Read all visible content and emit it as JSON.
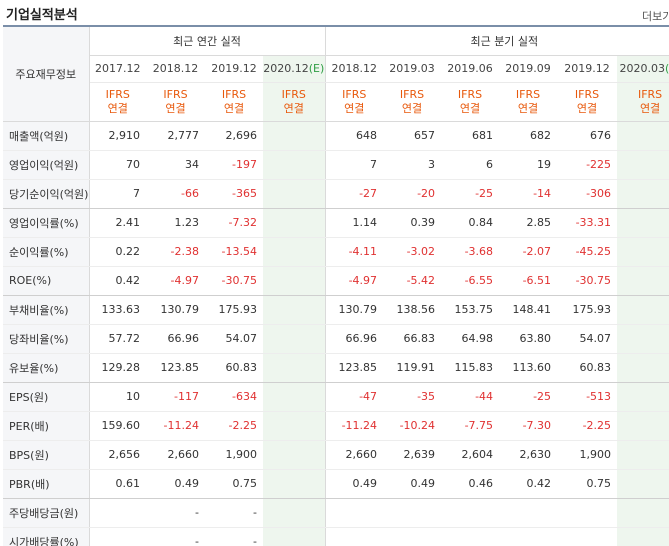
{
  "header": {
    "title": "기업실적분석",
    "more": "더보기"
  },
  "table": {
    "corner_label": "주요재무정보",
    "annual_label": "최근 연간 실적",
    "quarterly_label": "최근 분기 실적",
    "annual_periods": [
      "2017.12",
      "2018.12",
      "2019.12",
      "2020.12"
    ],
    "annual_estimate_mark": "(E)",
    "quarterly_periods": [
      "2018.12",
      "2019.03",
      "2019.06",
      "2019.09",
      "2019.12",
      "2020.03"
    ],
    "quarterly_estimate_mark": "(E)",
    "ifrs_line1": "IFRS",
    "ifrs_line2": "연결",
    "rows": [
      {
        "label": "매출액(억원)",
        "annual": [
          "2,910",
          "2,777",
          "2,696",
          ""
        ],
        "quarterly": [
          "648",
          "657",
          "681",
          "682",
          "676",
          ""
        ]
      },
      {
        "label": "영업이익(억원)",
        "annual": [
          "70",
          "34",
          "-197",
          ""
        ],
        "quarterly": [
          "7",
          "3",
          "6",
          "19",
          "-225",
          ""
        ]
      },
      {
        "label": "당기순이익(억원)",
        "annual": [
          "7",
          "-66",
          "-365",
          ""
        ],
        "quarterly": [
          "-27",
          "-20",
          "-25",
          "-14",
          "-306",
          ""
        ]
      },
      {
        "label": "영업이익률(%)",
        "annual": [
          "2.41",
          "1.23",
          "-7.32",
          ""
        ],
        "quarterly": [
          "1.14",
          "0.39",
          "0.84",
          "2.85",
          "-33.31",
          ""
        ]
      },
      {
        "label": "순이익률(%)",
        "annual": [
          "0.22",
          "-2.38",
          "-13.54",
          ""
        ],
        "quarterly": [
          "-4.11",
          "-3.02",
          "-3.68",
          "-2.07",
          "-45.25",
          ""
        ]
      },
      {
        "label": "ROE(%)",
        "annual": [
          "0.42",
          "-4.97",
          "-30.75",
          ""
        ],
        "quarterly": [
          "-4.97",
          "-5.42",
          "-6.55",
          "-6.51",
          "-30.75",
          ""
        ]
      },
      {
        "label": "부채비율(%)",
        "annual": [
          "133.63",
          "130.79",
          "175.93",
          ""
        ],
        "quarterly": [
          "130.79",
          "138.56",
          "153.75",
          "148.41",
          "175.93",
          ""
        ]
      },
      {
        "label": "당좌비율(%)",
        "annual": [
          "57.72",
          "66.96",
          "54.07",
          ""
        ],
        "quarterly": [
          "66.96",
          "66.83",
          "64.98",
          "63.80",
          "54.07",
          ""
        ]
      },
      {
        "label": "유보율(%)",
        "annual": [
          "129.28",
          "123.85",
          "60.83",
          ""
        ],
        "quarterly": [
          "123.85",
          "119.91",
          "115.83",
          "113.60",
          "60.83",
          ""
        ]
      },
      {
        "label": "EPS(원)",
        "annual": [
          "10",
          "-117",
          "-634",
          ""
        ],
        "quarterly": [
          "-47",
          "-35",
          "-44",
          "-25",
          "-513",
          ""
        ]
      },
      {
        "label": "PER(배)",
        "annual": [
          "159.60",
          "-11.24",
          "-2.25",
          ""
        ],
        "quarterly": [
          "-11.24",
          "-10.24",
          "-7.75",
          "-7.30",
          "-2.25",
          ""
        ]
      },
      {
        "label": "BPS(원)",
        "annual": [
          "2,656",
          "2,660",
          "1,900",
          ""
        ],
        "quarterly": [
          "2,660",
          "2,639",
          "2,604",
          "2,630",
          "1,900",
          ""
        ]
      },
      {
        "label": "PBR(배)",
        "annual": [
          "0.61",
          "0.49",
          "0.75",
          ""
        ],
        "quarterly": [
          "0.49",
          "0.49",
          "0.46",
          "0.42",
          "0.75",
          ""
        ]
      },
      {
        "label": "주당배당금(원)",
        "annual": [
          "",
          "-",
          "-",
          ""
        ],
        "quarterly": [
          "",
          "",
          "",
          "",
          "",
          ""
        ]
      },
      {
        "label": "시가배당률(%)",
        "annual": [
          "",
          "-",
          "-",
          ""
        ],
        "quarterly": [
          "",
          "",
          "",
          "",
          "",
          ""
        ]
      }
    ]
  }
}
